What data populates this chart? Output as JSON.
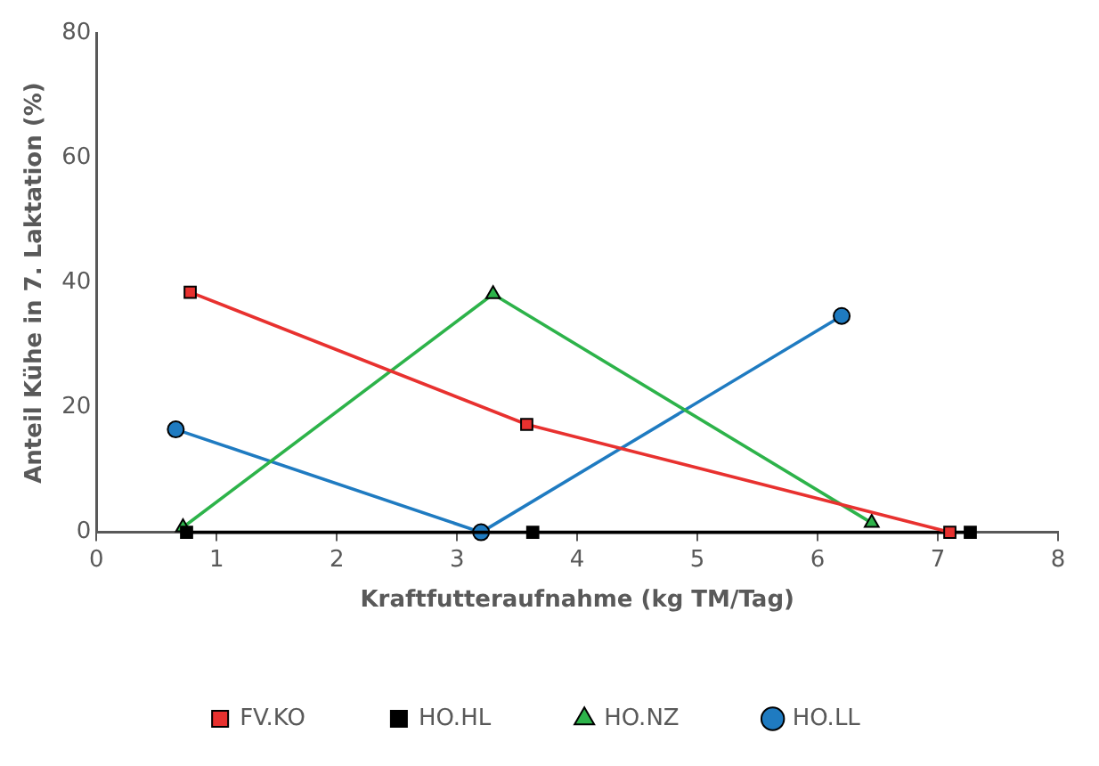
{
  "chart_data": {
    "type": "line",
    "xlabel": "Kraftfutteraufnahme (kg TM/Tag)",
    "ylabel": "Anteil Kühe in 7. Laktation (%)",
    "xlim": [
      0,
      8
    ],
    "xticks": [
      0,
      1,
      2,
      3,
      4,
      5,
      6,
      7,
      8
    ],
    "ylim": [
      0,
      80
    ],
    "yticks": [
      0,
      20,
      40,
      60,
      80
    ],
    "grid": false,
    "legend": "bottom",
    "line_style": "solid",
    "series": [
      {
        "name": "FV.KO",
        "color": "#e8312f",
        "marker": "square",
        "x": [
          0.78,
          3.58,
          7.1
        ],
        "values": [
          38.5,
          17.3,
          0
        ]
      },
      {
        "name": "HO.HL",
        "color": "#000000",
        "marker": "square",
        "x": [
          0.75,
          3.63,
          7.27
        ],
        "values": [
          0,
          0,
          0
        ]
      },
      {
        "name": "HO.NZ",
        "color": "#2db34a",
        "marker": "triangle",
        "x": [
          0.72,
          3.3,
          6.45
        ],
        "values": [
          0.8,
          38.2,
          1.5
        ]
      },
      {
        "name": "HO.LL",
        "color": "#1f7bc1",
        "marker": "circle",
        "x": [
          0.66,
          3.2,
          6.2
        ],
        "values": [
          16.5,
          0,
          34.7
        ]
      }
    ]
  }
}
